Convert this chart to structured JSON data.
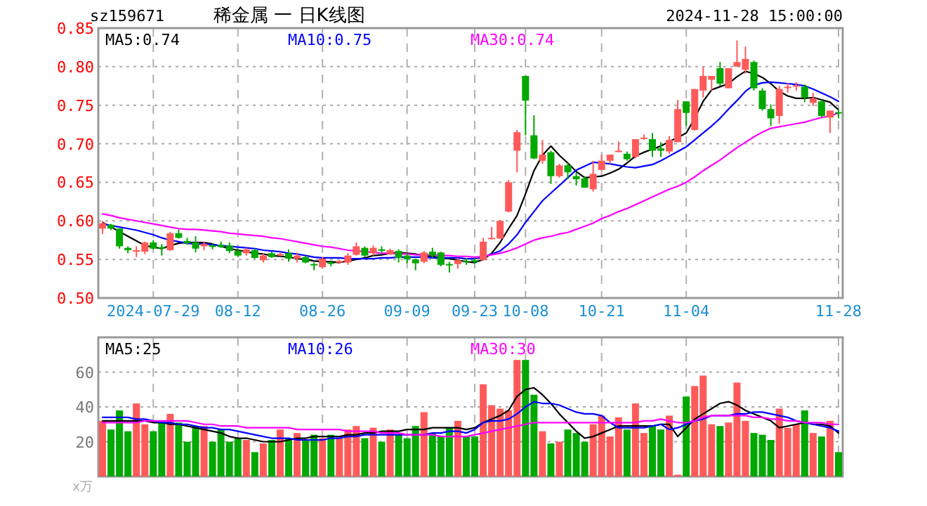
{
  "chart_data": [
    {
      "type": "candlestick",
      "subtitle": "sz159671",
      "title": "稀金属 一 日K线图",
      "annotations": [
        "2024-11-28 15:00:00"
      ],
      "categories": [
        null,
        null,
        null,
        null,
        null,
        null,
        "2024-07-29",
        null,
        null,
        null,
        null,
        null,
        null,
        null,
        null,
        null,
        "08-12",
        null,
        null,
        null,
        null,
        null,
        null,
        null,
        null,
        null,
        "08-26",
        null,
        null,
        null,
        null,
        null,
        null,
        null,
        null,
        null,
        "09-09",
        null,
        null,
        null,
        null,
        null,
        null,
        null,
        "09-23",
        null,
        null,
        null,
        null,
        null,
        "10-08",
        null,
        null,
        null,
        null,
        null,
        null,
        null,
        null,
        "10-21",
        null,
        null,
        null,
        null,
        null,
        null,
        null,
        null,
        null,
        "11-04",
        null,
        null,
        null,
        null,
        null,
        null,
        null,
        null,
        null,
        null,
        null,
        null,
        null,
        null,
        null,
        null,
        null,
        "11-28"
      ],
      "ohlc": [
        [
          0.59,
          0.6,
          0.583,
          0.597
        ],
        [
          0.595,
          0.596,
          0.588,
          0.59
        ],
        [
          0.59,
          0.59,
          0.564,
          0.567
        ],
        [
          0.565,
          0.567,
          0.558,
          0.562
        ],
        [
          0.56,
          0.567,
          0.553,
          0.562
        ],
        [
          0.56,
          0.573,
          0.557,
          0.572
        ],
        [
          0.572,
          0.575,
          0.563,
          0.564
        ],
        [
          0.566,
          0.57,
          0.555,
          0.564
        ],
        [
          0.562,
          0.586,
          0.561,
          0.584
        ],
        [
          0.584,
          0.589,
          0.577,
          0.578
        ],
        [
          0.574,
          0.578,
          0.569,
          0.571
        ],
        [
          0.572,
          0.58,
          0.559,
          0.564
        ],
        [
          0.567,
          0.573,
          0.562,
          0.57
        ],
        [
          0.568,
          0.57,
          0.563,
          0.567
        ],
        [
          0.569,
          0.573,
          0.565,
          0.566
        ],
        [
          0.568,
          0.572,
          0.558,
          0.561
        ],
        [
          0.561,
          0.564,
          0.553,
          0.555
        ],
        [
          0.558,
          0.565,
          0.555,
          0.563
        ],
        [
          0.562,
          0.564,
          0.551,
          0.552
        ],
        [
          0.549,
          0.558,
          0.546,
          0.555
        ],
        [
          0.558,
          0.56,
          0.552,
          0.553
        ],
        [
          0.556,
          0.56,
          0.554,
          0.557
        ],
        [
          0.558,
          0.563,
          0.547,
          0.551
        ],
        [
          0.551,
          0.559,
          0.546,
          0.555
        ],
        [
          0.553,
          0.555,
          0.545,
          0.546
        ],
        [
          0.544,
          0.546,
          0.536,
          0.543
        ],
        [
          0.54,
          0.553,
          0.538,
          0.551
        ],
        [
          0.546,
          0.548,
          0.541,
          0.545
        ],
        [
          0.546,
          0.549,
          0.544,
          0.548
        ],
        [
          0.546,
          0.558,
          0.543,
          0.555
        ],
        [
          0.556,
          0.572,
          0.555,
          0.567
        ],
        [
          0.565,
          0.567,
          0.553,
          0.555
        ],
        [
          0.558,
          0.568,
          0.555,
          0.565
        ],
        [
          0.563,
          0.567,
          0.558,
          0.562
        ],
        [
          0.557,
          0.564,
          0.556,
          0.562
        ],
        [
          0.561,
          0.563,
          0.546,
          0.552
        ],
        [
          0.555,
          0.558,
          0.545,
          0.55
        ],
        [
          0.55,
          0.551,
          0.536,
          0.545
        ],
        [
          0.547,
          0.561,
          0.545,
          0.559
        ],
        [
          0.56,
          0.565,
          0.552,
          0.555
        ],
        [
          0.559,
          0.56,
          0.541,
          0.543
        ],
        [
          0.544,
          0.547,
          0.533,
          0.543
        ],
        [
          0.544,
          0.552,
          0.538,
          0.549
        ],
        [
          0.548,
          0.552,
          0.543,
          0.547
        ],
        [
          0.549,
          0.552,
          0.544,
          0.547
        ],
        [
          0.549,
          0.578,
          0.549,
          0.573
        ],
        [
          0.577,
          0.592,
          0.576,
          0.578
        ],
        [
          0.577,
          0.601,
          0.577,
          0.6
        ],
        [
          0.612,
          0.653,
          0.611,
          0.65
        ],
        [
          0.691,
          0.718,
          0.663,
          0.715
        ],
        [
          0.788,
          0.788,
          0.711,
          0.756
        ],
        [
          0.711,
          0.737,
          0.68,
          0.681
        ],
        [
          0.678,
          0.705,
          0.674,
          0.686
        ],
        [
          0.689,
          0.691,
          0.648,
          0.658
        ],
        [
          0.658,
          0.674,
          0.656,
          0.672
        ],
        [
          0.672,
          0.675,
          0.654,
          0.663
        ],
        [
          0.658,
          0.663,
          0.646,
          0.654
        ],
        [
          0.655,
          0.658,
          0.643,
          0.643
        ],
        [
          0.641,
          0.678,
          0.638,
          0.661
        ],
        [
          0.666,
          0.686,
          0.666,
          0.678
        ],
        [
          0.678,
          0.686,
          0.674,
          0.686
        ],
        [
          0.69,
          0.703,
          0.689,
          0.691
        ],
        [
          0.687,
          0.69,
          0.678,
          0.68
        ],
        [
          0.683,
          0.706,
          0.681,
          0.706
        ],
        [
          0.707,
          0.712,
          0.705,
          0.708
        ],
        [
          0.706,
          0.714,
          0.683,
          0.691
        ],
        [
          0.694,
          0.702,
          0.683,
          0.691
        ],
        [
          0.69,
          0.71,
          0.687,
          0.705
        ],
        [
          0.702,
          0.757,
          0.702,
          0.745
        ],
        [
          0.755,
          0.755,
          0.723,
          0.74
        ],
        [
          0.718,
          0.771,
          0.717,
          0.771
        ],
        [
          0.769,
          0.8,
          0.76,
          0.788
        ],
        [
          0.783,
          0.788,
          0.769,
          0.788
        ],
        [
          0.798,
          0.806,
          0.775,
          0.778
        ],
        [
          0.772,
          0.798,
          0.772,
          0.798
        ],
        [
          0.8,
          0.834,
          0.8,
          0.806
        ],
        [
          0.796,
          0.826,
          0.791,
          0.81
        ],
        [
          0.806,
          0.808,
          0.769,
          0.772
        ],
        [
          0.769,
          0.772,
          0.743,
          0.745
        ],
        [
          0.745,
          0.751,
          0.723,
          0.733
        ],
        [
          0.736,
          0.775,
          0.726,
          0.771
        ],
        [
          0.773,
          0.779,
          0.766,
          0.774
        ],
        [
          0.775,
          0.78,
          0.769,
          0.776
        ],
        [
          0.774,
          0.777,
          0.754,
          0.76
        ],
        [
          0.753,
          0.766,
          0.749,
          0.759
        ],
        [
          0.755,
          0.757,
          0.734,
          0.736
        ],
        [
          0.734,
          0.743,
          0.714,
          0.743
        ],
        [
          0.741,
          0.745,
          0.733,
          0.74
        ]
      ],
      "series": [
        {
          "name": "MA5:0.74",
          "type": "line",
          "color": "#000000",
          "values": [
            0.598,
            0.592,
            0.586,
            0.58,
            0.574,
            0.568,
            0.566,
            0.564,
            0.568,
            0.571,
            0.572,
            0.572,
            0.572,
            0.57,
            0.567,
            0.564,
            0.562,
            0.56,
            0.558,
            0.557,
            0.555,
            0.554,
            0.553,
            0.551,
            0.55,
            0.548,
            0.547,
            0.547,
            0.546,
            0.548,
            0.55,
            0.552,
            0.555,
            0.556,
            0.558,
            0.559,
            0.558,
            0.557,
            0.555,
            0.554,
            0.552,
            0.551,
            0.549,
            0.547,
            0.546,
            0.55,
            0.558,
            0.572,
            0.59,
            0.607,
            0.635,
            0.665,
            0.685,
            0.697,
            0.685,
            0.675,
            0.664,
            0.656,
            0.657,
            0.658,
            0.662,
            0.667,
            0.675,
            0.684,
            0.689,
            0.693,
            0.697,
            0.703,
            0.708,
            0.714,
            0.733,
            0.755,
            0.77,
            0.774,
            0.778,
            0.787,
            0.794,
            0.791,
            0.786,
            0.778,
            0.768,
            0.762,
            0.759,
            0.759,
            0.76,
            0.757,
            0.754,
            0.744
          ]
        },
        {
          "name": "MA10:0.75",
          "type": "line",
          "color": "#0000ff",
          "values": [
            0.596,
            0.594,
            0.592,
            0.59,
            0.588,
            0.585,
            0.582,
            0.578,
            0.575,
            0.573,
            0.571,
            0.57,
            0.57,
            0.569,
            0.568,
            0.567,
            0.566,
            0.565,
            0.564,
            0.562,
            0.561,
            0.56,
            0.558,
            0.557,
            0.555,
            0.553,
            0.552,
            0.552,
            0.552,
            0.551,
            0.551,
            0.551,
            0.551,
            0.552,
            0.552,
            0.553,
            0.553,
            0.553,
            0.553,
            0.552,
            0.552,
            0.552,
            0.552,
            0.551,
            0.551,
            0.553,
            0.557,
            0.561,
            0.57,
            0.582,
            0.598,
            0.612,
            0.626,
            0.636,
            0.646,
            0.656,
            0.666,
            0.671,
            0.676,
            0.675,
            0.674,
            0.672,
            0.67,
            0.669,
            0.671,
            0.673,
            0.678,
            0.684,
            0.69,
            0.696,
            0.705,
            0.714,
            0.723,
            0.733,
            0.745,
            0.756,
            0.768,
            0.776,
            0.779,
            0.78,
            0.779,
            0.778,
            0.777,
            0.775,
            0.771,
            0.766,
            0.761,
            0.755
          ]
        },
        {
          "name": "MA30:0.74",
          "type": "line",
          "color": "#ff00ff",
          "values": [
            0.609,
            0.607,
            0.604,
            0.602,
            0.6,
            0.598,
            0.596,
            0.594,
            0.592,
            0.59,
            0.589,
            0.589,
            0.588,
            0.587,
            0.586,
            0.584,
            0.583,
            0.582,
            0.581,
            0.58,
            0.578,
            0.577,
            0.575,
            0.573,
            0.571,
            0.569,
            0.567,
            0.566,
            0.564,
            0.562,
            0.561,
            0.56,
            0.559,
            0.558,
            0.558,
            0.557,
            0.557,
            0.556,
            0.556,
            0.556,
            0.555,
            0.555,
            0.554,
            0.554,
            0.553,
            0.554,
            0.556,
            0.558,
            0.561,
            0.565,
            0.57,
            0.575,
            0.578,
            0.58,
            0.583,
            0.585,
            0.589,
            0.593,
            0.597,
            0.603,
            0.607,
            0.612,
            0.616,
            0.621,
            0.626,
            0.631,
            0.636,
            0.641,
            0.645,
            0.65,
            0.657,
            0.665,
            0.672,
            0.679,
            0.687,
            0.695,
            0.702,
            0.709,
            0.715,
            0.72,
            0.722,
            0.724,
            0.726,
            0.728,
            0.731,
            0.734,
            0.736,
            0.74
          ]
        }
      ],
      "ylim": [
        0.5,
        0.85
      ],
      "yticks": [
        {
          "value": 0.5,
          "label": "0.50"
        },
        {
          "value": 0.55,
          "label": "0.55"
        },
        {
          "value": 0.6,
          "label": "0.60"
        },
        {
          "value": 0.65,
          "label": "0.65"
        },
        {
          "value": 0.7,
          "label": "0.70"
        },
        {
          "value": 0.75,
          "label": "0.75"
        },
        {
          "value": 0.8,
          "label": "0.80"
        },
        {
          "value": 0.85,
          "label": "0.85"
        }
      ],
      "grid": true,
      "legend": "top left"
    },
    {
      "type": "bar",
      "ylabel": "x万",
      "tick_labels": "y",
      "categories": [
        null,
        null,
        null,
        null,
        null,
        null,
        null,
        null,
        null,
        null,
        null,
        null,
        null,
        null,
        null,
        null,
        null,
        null,
        null,
        null,
        null,
        null,
        null,
        null,
        null,
        null,
        null,
        null,
        null,
        null,
        null,
        null,
        null,
        null,
        null,
        null,
        null,
        null,
        null,
        null,
        null,
        null,
        null,
        null,
        null,
        null,
        null,
        null,
        null,
        null,
        null,
        null,
        null,
        null,
        null,
        null,
        null,
        null,
        null,
        null,
        null,
        null,
        null,
        null,
        null,
        null,
        null,
        null,
        null,
        null,
        null,
        null,
        null,
        null,
        null,
        null,
        null,
        null,
        null,
        null,
        null,
        null,
        null,
        null,
        null,
        null,
        null,
        null
      ],
      "series": [
        {
          "type": "bar",
          "values": [
            32,
            27,
            38,
            26,
            42,
            30,
            26,
            31,
            36,
            31,
            20,
            29,
            29,
            20,
            27,
            20,
            22,
            21,
            14,
            19,
            21,
            27,
            22,
            25,
            21,
            24,
            22,
            24,
            22,
            27,
            29,
            22,
            28,
            20,
            27,
            24,
            22,
            29,
            37,
            25,
            23,
            28,
            32,
            23,
            23,
            53,
            41,
            39,
            38,
            67,
            67,
            47,
            26,
            19,
            20,
            27,
            25,
            20,
            30,
            35,
            23,
            34,
            27,
            42,
            25,
            29,
            27,
            35,
            1,
            46,
            52,
            58,
            30,
            29,
            31,
            54,
            32,
            25,
            24,
            21,
            39,
            28,
            30,
            38,
            25,
            23,
            32,
            14
          ],
          "colors": [
            "#ff5a5a",
            "#00a800",
            "#00a800",
            "#00a800",
            "#ff5a5a",
            "#ff5a5a",
            "#00a800",
            "#00a800",
            "#ff5a5a",
            "#00a800",
            "#00a800",
            "#00a800",
            "#ff5a5a",
            "#00a800",
            "#00a800",
            "#00a800",
            "#00a800",
            "#ff5a5a",
            "#00a800",
            "#ff5a5a",
            "#00a800",
            "#ff5a5a",
            "#00a800",
            "#ff5a5a",
            "#00a800",
            "#00a800",
            "#ff5a5a",
            "#00a800",
            "#ff5a5a",
            "#ff5a5a",
            "#ff5a5a",
            "#00a800",
            "#ff5a5a",
            "#00a800",
            "#ff5a5a",
            "#00a800",
            "#00a800",
            "#00a800",
            "#ff5a5a",
            "#00a800",
            "#00a800",
            "#00a800",
            "#ff5a5a",
            "#00a800",
            "#00a800",
            "#ff5a5a",
            "#ff5a5a",
            "#ff5a5a",
            "#ff5a5a",
            "#ff5a5a",
            "#00a800",
            "#00a800",
            "#ff5a5a",
            "#00a800",
            "#ff5a5a",
            "#00a800",
            "#00a800",
            "#00a800",
            "#ff5a5a",
            "#ff5a5a",
            "#ff5a5a",
            "#ff5a5a",
            "#00a800",
            "#ff5a5a",
            "#ff5a5a",
            "#00a800",
            "#00a800",
            "#ff5a5a",
            "#ff5a5a",
            "#00a800",
            "#ff5a5a",
            "#ff5a5a",
            "#ff5a5a",
            "#00a800",
            "#ff5a5a",
            "#ff5a5a",
            "#ff5a5a",
            "#00a800",
            "#00a800",
            "#00a800",
            "#ff5a5a",
            "#ff5a5a",
            "#ff5a5a",
            "#00a800",
            "#ff5a5a",
            "#00a800",
            "#ff5a5a",
            "#00a800"
          ]
        },
        {
          "name": "MA5:25",
          "type": "line",
          "color": "#000000",
          "values": [
            32,
            32,
            32,
            32,
            32,
            32,
            31,
            31,
            30,
            30,
            29,
            28,
            27,
            26,
            25,
            23,
            22,
            22,
            21,
            20,
            20,
            20,
            21,
            22,
            22,
            23,
            23,
            23,
            23,
            24,
            24,
            25,
            25,
            26,
            26,
            26,
            27,
            27,
            27,
            28,
            28,
            28,
            28,
            27,
            28,
            31,
            33,
            35,
            38,
            46,
            50,
            51,
            47,
            42,
            36,
            31,
            26,
            22,
            23,
            25,
            27,
            29,
            29,
            29,
            29,
            29,
            30,
            30,
            23,
            28,
            33,
            36,
            39,
            42,
            43,
            41,
            38,
            36,
            34,
            32,
            28,
            29,
            30,
            31,
            30,
            30,
            29,
            25
          ]
        },
        {
          "name": "MA10:26",
          "type": "line",
          "color": "#0000ff",
          "values": [
            34,
            34,
            34,
            34,
            33,
            33,
            32,
            31,
            31,
            30,
            30,
            29,
            28,
            28,
            27,
            27,
            26,
            25,
            24,
            23,
            22,
            22,
            22,
            21,
            21,
            21,
            21,
            22,
            22,
            23,
            23,
            24,
            24,
            24,
            24,
            24,
            24,
            24,
            24,
            25,
            25,
            26,
            26,
            25,
            27,
            31,
            32,
            32,
            33,
            36,
            40,
            43,
            42,
            42,
            41,
            39,
            37,
            36,
            36,
            35,
            31,
            28,
            28,
            28,
            28,
            29,
            30,
            27,
            28,
            30,
            32,
            33,
            35,
            35,
            35,
            36,
            36,
            37,
            37,
            36,
            35,
            34,
            32,
            31,
            30,
            29,
            28,
            26
          ]
        },
        {
          "name": "MA30:30",
          "type": "line",
          "color": "#ff00ff",
          "values": [
            31,
            31,
            31,
            31,
            31,
            32,
            32,
            32,
            32,
            32,
            32,
            31,
            30,
            30,
            29,
            29,
            29,
            28,
            28,
            28,
            28,
            28,
            28,
            27,
            27,
            27,
            27,
            27,
            27,
            26,
            26,
            26,
            26,
            25,
            25,
            25,
            24,
            24,
            24,
            24,
            23,
            23,
            23,
            23,
            24,
            25,
            26,
            27,
            28,
            29,
            30,
            31,
            31,
            31,
            31,
            31,
            31,
            31,
            31,
            31,
            31,
            31,
            31,
            31,
            32,
            32,
            33,
            32,
            31,
            31,
            32,
            34,
            35,
            35,
            35,
            35,
            35,
            34,
            34,
            33,
            33,
            32,
            32,
            31,
            31,
            31,
            30,
            30
          ]
        }
      ],
      "ylim": [
        0,
        80
      ],
      "yticks": [
        20,
        40,
        60
      ],
      "grid": true,
      "legend": "top left"
    }
  ]
}
